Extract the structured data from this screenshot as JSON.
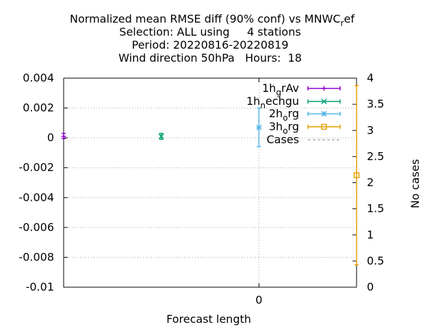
{
  "chart_data": {
    "type": "scatter",
    "title_lines": [
      "Normalized mean RMSE diff (90% conf) vs MNWC",
      "Selection: ALL using     4 stations",
      "Period: 20220816-20220819",
      "Wind direction 50hPa   Hours:  18"
    ],
    "title_sub": "r",
    "title_tail": "ef",
    "xlabel": "Forecast length",
    "ylabel_right": "No cases",
    "x_tick_labels": [
      "0"
    ],
    "y_ticks": [
      "0.004",
      "0.002",
      "0",
      "-0.002",
      "-0.004",
      "-0.006",
      "-0.008",
      "-0.01"
    ],
    "y2_ticks": [
      "4",
      "3.5",
      "3",
      "2.5",
      "2",
      "1.5",
      "1",
      "0.5",
      "0"
    ],
    "ylim": [
      -0.01,
      0.004
    ],
    "y2lim": [
      0,
      4
    ],
    "grid": true,
    "legend_position": "top-right",
    "series": [
      {
        "name": "1h_grAv",
        "main": "1h",
        "sub": "g",
        "tail": "rAv",
        "color": "#9400d3",
        "marker": "plus",
        "x_offset": -1.0,
        "y": 0.0001,
        "err_low": -5e-05,
        "err_high": 0.0003
      },
      {
        "name": "1h_nechgu",
        "main": "1h",
        "sub": "n",
        "tail": "echgu",
        "color": "#009e73",
        "marker": "cross",
        "x_offset": -0.5,
        "y": 0.0001,
        "err_low": -0.0001,
        "err_high": 0.0003
      },
      {
        "name": "2h_org",
        "main": "2h",
        "sub": "o",
        "tail": "rg",
        "color": "#56b4e9",
        "marker": "star",
        "x_offset": 0.0,
        "y": 0.0007,
        "err_low": -0.0006,
        "err_high": 0.002
      },
      {
        "name": "3h_org",
        "main": "3h",
        "sub": "o",
        "tail": "rg",
        "color": "#e69f00",
        "marker": "square",
        "x_offset": 0.5,
        "y": -0.0025,
        "err_low": -0.0085,
        "err_high": 0.0035
      },
      {
        "name": "Cases",
        "main": "Cases",
        "sub": "",
        "tail": "",
        "color": "#888888",
        "marker": "none"
      }
    ]
  }
}
